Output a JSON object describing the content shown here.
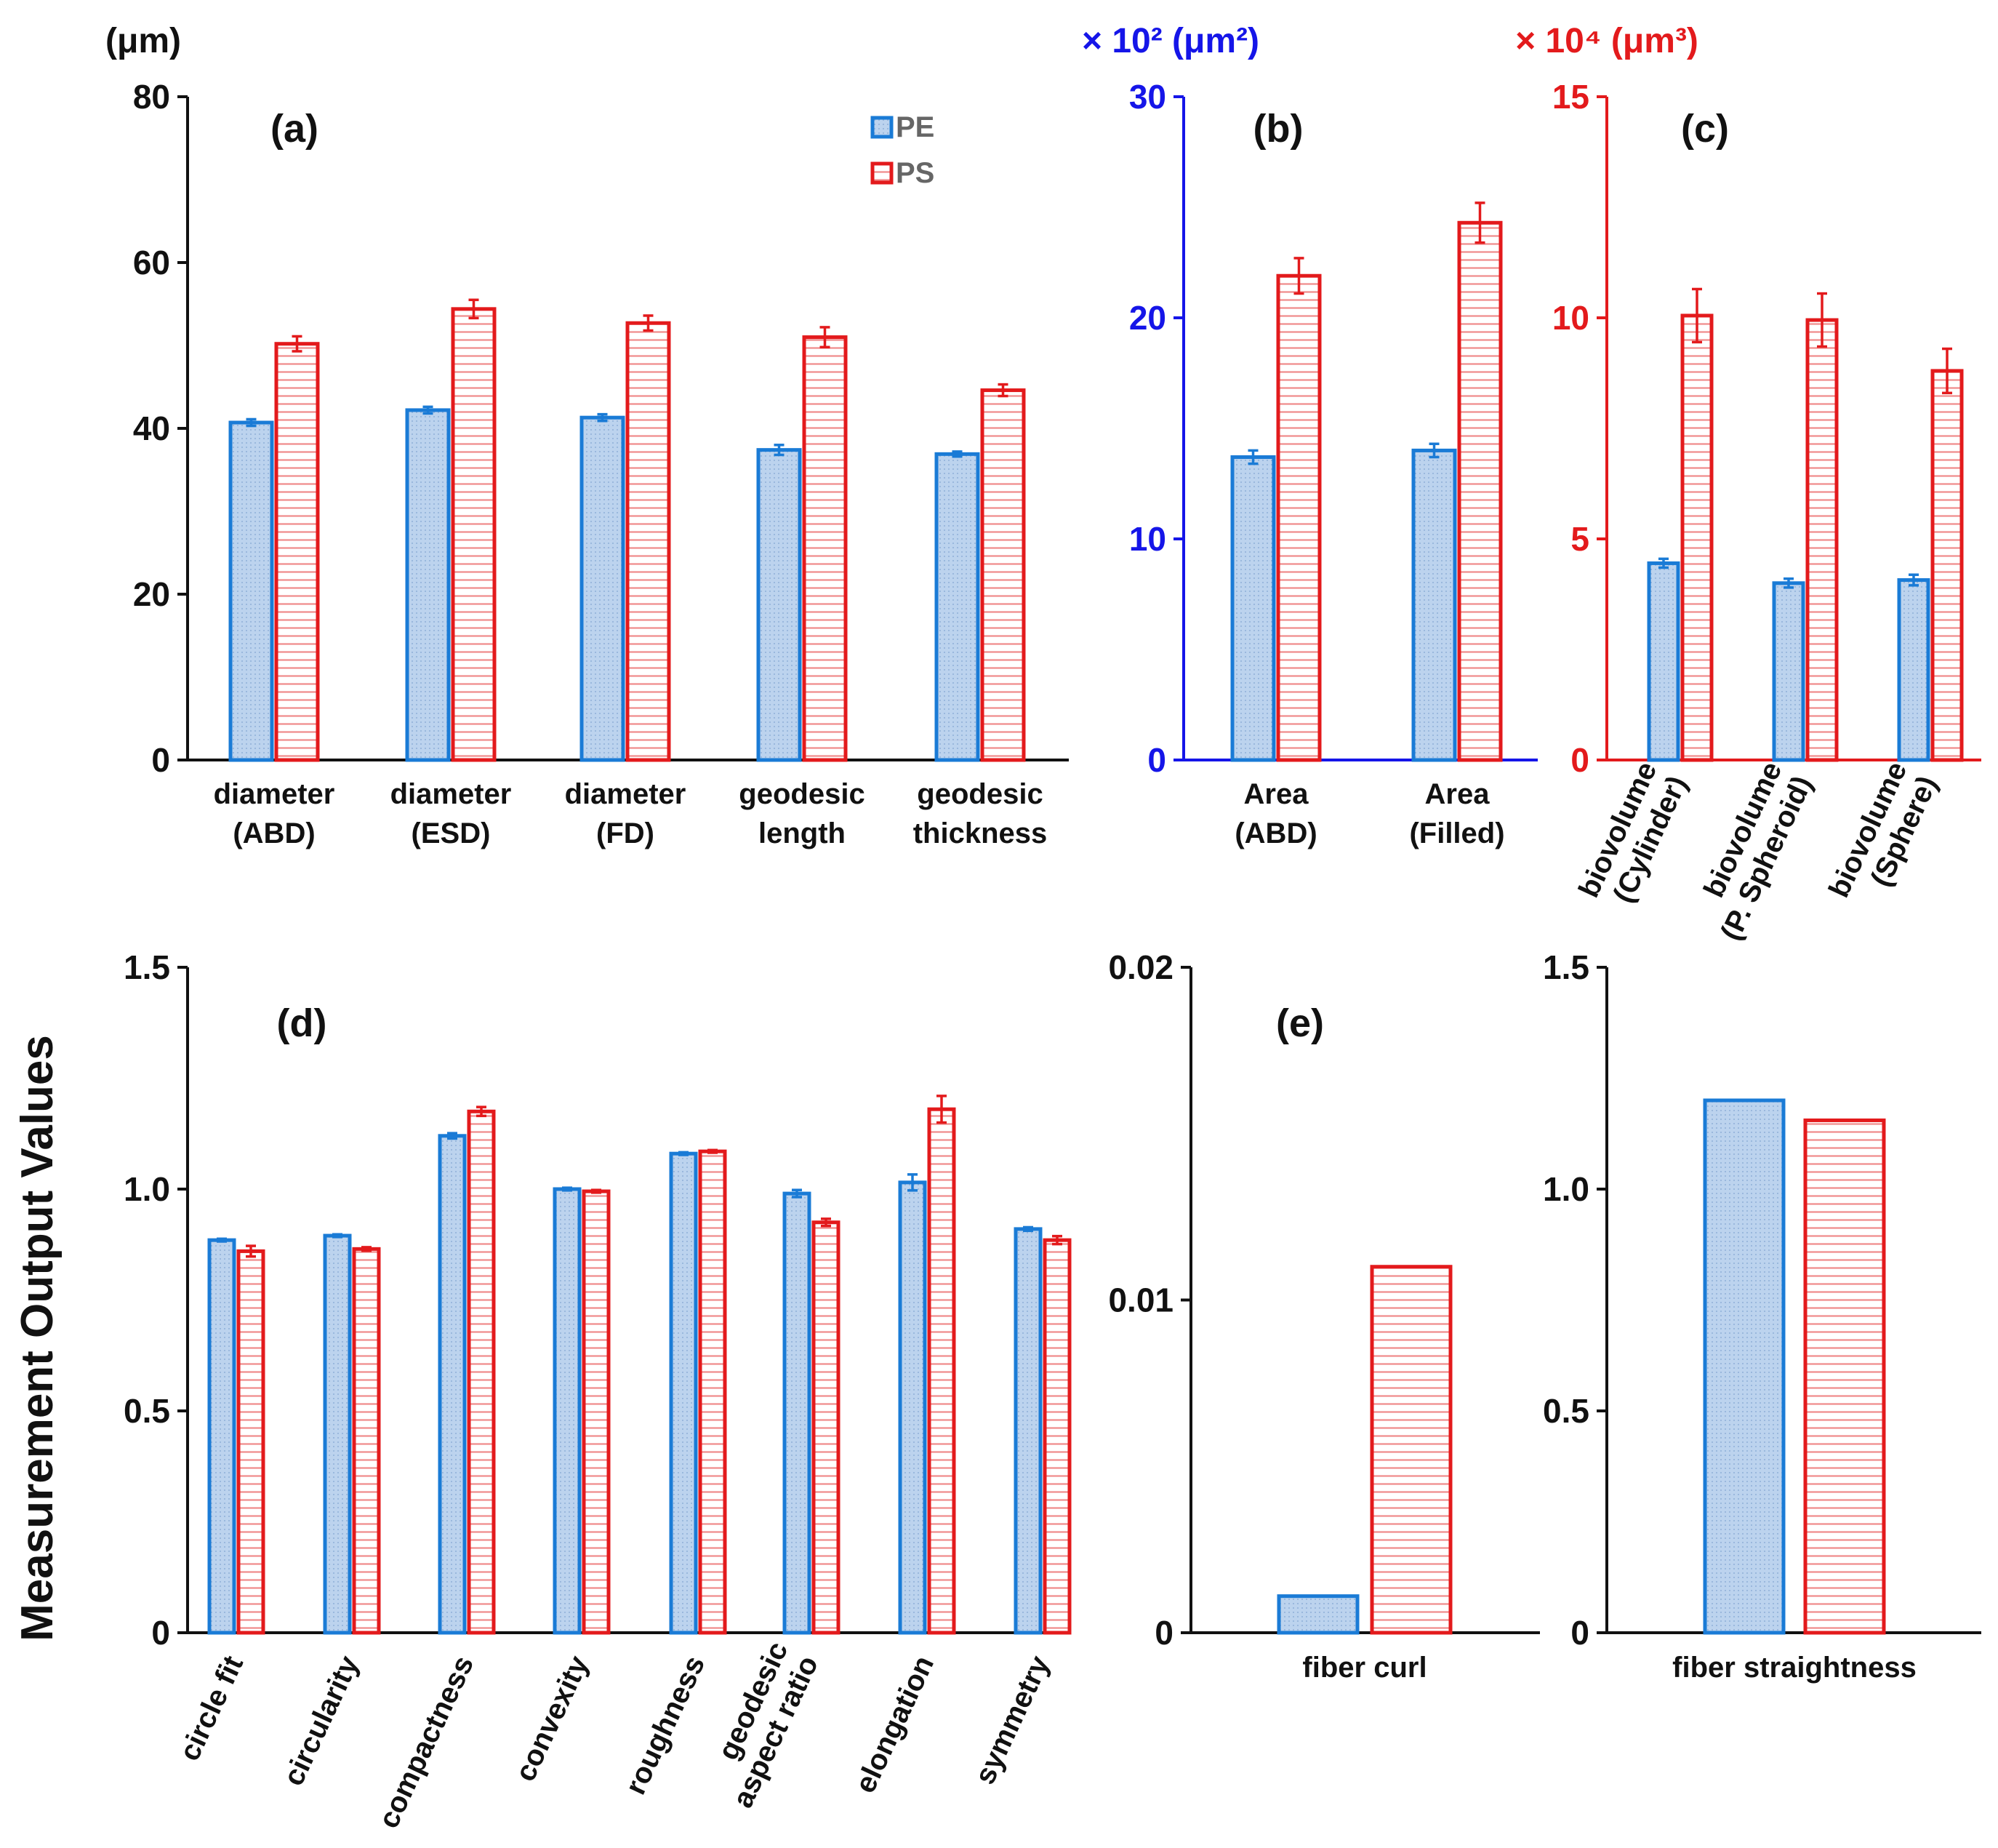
{
  "figure": {
    "y_axis_title": "Measurement Output Values",
    "legend": [
      {
        "name": "PE",
        "color": "#1a7bd6"
      },
      {
        "name": "PS",
        "color": "#e31a1c"
      }
    ]
  },
  "colors": {
    "pe_stroke": "#1a7bd6",
    "pe_fill": "#bcd3ee",
    "ps_stroke": "#e31a1c",
    "ps_hatch": "#f08a8a",
    "axis_black": "#111111",
    "axis_blue": "#1515e8",
    "axis_red": "#e31a1c"
  },
  "chart_data": [
    {
      "id": "a",
      "type": "bar",
      "panel_label": "(a)",
      "unit": "(μm)",
      "unit_color": "#111111",
      "axis_color": "#111111",
      "ylim": [
        0,
        80
      ],
      "yticks": [
        "0",
        "20",
        "40",
        "60",
        "80"
      ],
      "ytick_values": [
        0,
        20,
        40,
        60,
        80
      ],
      "categories": [
        [
          "diameter",
          "(ABD)"
        ],
        [
          "diameter",
          "(ESD)"
        ],
        [
          "diameter",
          "(FD)"
        ],
        [
          "geodesic",
          "length"
        ],
        [
          "geodesic",
          "thickness"
        ]
      ],
      "series": [
        {
          "name": "PE",
          "values": [
            40.7,
            42.2,
            41.3,
            37.4,
            36.9
          ],
          "errors": [
            0.4,
            0.4,
            0.4,
            0.6,
            0.3
          ]
        },
        {
          "name": "PS",
          "values": [
            50.2,
            54.4,
            52.7,
            51.0,
            44.6
          ],
          "errors": [
            0.9,
            1.1,
            0.9,
            1.2,
            0.7
          ]
        }
      ]
    },
    {
      "id": "b",
      "type": "bar",
      "panel_label": "(b)",
      "unit": "× 10² (μm²)",
      "unit_color": "#1515e8",
      "axis_color": "#1515e8",
      "ylim": [
        0,
        30
      ],
      "yticks": [
        "0",
        "10",
        "20",
        "30"
      ],
      "ytick_values": [
        0,
        10,
        20,
        30
      ],
      "categories": [
        [
          "Area",
          "(ABD)"
        ],
        [
          "Area",
          "(Filled)"
        ]
      ],
      "series": [
        {
          "name": "PE",
          "values": [
            13.7,
            14.0
          ],
          "errors": [
            0.3,
            0.3
          ]
        },
        {
          "name": "PS",
          "values": [
            21.9,
            24.3
          ],
          "errors": [
            0.8,
            0.9
          ]
        }
      ]
    },
    {
      "id": "c",
      "type": "bar",
      "panel_label": "(c)",
      "unit": "× 10⁴ (μm³)",
      "unit_color": "#e31a1c",
      "axis_color": "#e31a1c",
      "ylim": [
        0,
        15
      ],
      "yticks": [
        "0",
        "5",
        "10",
        "15"
      ],
      "ytick_values": [
        0,
        5,
        10,
        15
      ],
      "categories": [
        [
          "biovolume",
          "(Cylinder)"
        ],
        [
          "biovolume",
          "(P. Spheroid)"
        ],
        [
          "biovolume",
          "(Sphere)"
        ]
      ],
      "series": [
        {
          "name": "PE",
          "values": [
            4.45,
            4.0,
            4.07
          ],
          "errors": [
            0.1,
            0.1,
            0.12
          ]
        },
        {
          "name": "PS",
          "values": [
            10.05,
            9.95,
            8.8
          ],
          "errors": [
            0.6,
            0.6,
            0.5
          ]
        }
      ]
    },
    {
      "id": "d",
      "type": "bar",
      "panel_label": "(d)",
      "unit": "",
      "axis_color": "#111111",
      "ylim": [
        0,
        1.5
      ],
      "yticks": [
        "0",
        "0.5",
        "1.0",
        "1.5"
      ],
      "ytick_values": [
        0,
        0.5,
        1.0,
        1.5
      ],
      "categories": [
        [
          "circle fit"
        ],
        [
          "circularity"
        ],
        [
          "compactness"
        ],
        [
          "convexity"
        ],
        [
          "roughness"
        ],
        [
          "geodesic",
          "aspect ratio"
        ],
        [
          "elongation"
        ],
        [
          "symmetry"
        ]
      ],
      "series": [
        {
          "name": "PE",
          "values": [
            0.885,
            0.895,
            1.12,
            1.0,
            1.08,
            0.99,
            1.015,
            0.91
          ],
          "errors": [
            0.003,
            0.003,
            0.006,
            0.003,
            0.003,
            0.008,
            0.018,
            0.004
          ]
        },
        {
          "name": "PS",
          "values": [
            0.86,
            0.865,
            1.175,
            0.995,
            1.085,
            0.925,
            1.18,
            0.885
          ],
          "errors": [
            0.012,
            0.004,
            0.01,
            0.003,
            0.003,
            0.008,
            0.03,
            0.009
          ]
        }
      ]
    },
    {
      "id": "e",
      "type": "bar",
      "panel_label": "(e)",
      "unit": "",
      "axis_color": "#111111",
      "ylim": [
        0,
        0.02
      ],
      "yticks": [
        "0",
        "0.01",
        "0.02"
      ],
      "ytick_values": [
        0,
        0.01,
        0.02
      ],
      "categories": [
        [
          "fiber curl"
        ]
      ],
      "series": [
        {
          "name": "PE",
          "values": [
            0.0011
          ]
        },
        {
          "name": "PS",
          "values": [
            0.011
          ]
        }
      ]
    },
    {
      "id": "f",
      "type": "bar",
      "panel_label": "",
      "unit": "",
      "axis_color": "#111111",
      "ylim": [
        0,
        1.5
      ],
      "yticks": [
        "0",
        "0.5",
        "1.0",
        "1.5"
      ],
      "ytick_values": [
        0,
        0.5,
        1.0,
        1.5
      ],
      "categories": [
        [
          "fiber straightness"
        ]
      ],
      "series": [
        {
          "name": "PE",
          "values": [
            1.2
          ]
        },
        {
          "name": "PS",
          "values": [
            1.155
          ]
        }
      ]
    }
  ]
}
